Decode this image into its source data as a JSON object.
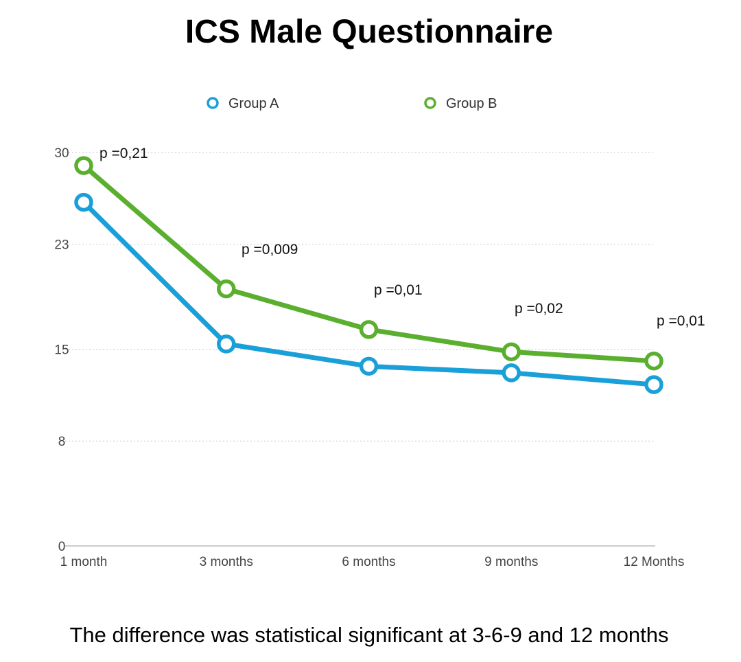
{
  "chart_data": {
    "type": "line",
    "title": "ICS Male Questionnaire",
    "categories": [
      "1 month",
      "3 months",
      "6 months",
      "9 months",
      "12 Months"
    ],
    "series": [
      {
        "name": "Group A",
        "color": "#1aa0d8",
        "values": [
          26.2,
          15.4,
          13.7,
          13.2,
          12.3
        ]
      },
      {
        "name": "Group B",
        "color": "#5aaf2f",
        "values": [
          29.0,
          19.6,
          16.5,
          14.8,
          14.1
        ]
      }
    ],
    "yticks": [
      0,
      8,
      15,
      23,
      30
    ],
    "ylim": [
      0,
      30
    ],
    "grid": true,
    "legend_position": "top",
    "annotations": [
      "p =0,21",
      "p =0,009",
      "p =0,01",
      "p =0,02",
      "p =0,01"
    ],
    "caption": "The difference was statistical significant at 3-6-9 and 12 months"
  }
}
